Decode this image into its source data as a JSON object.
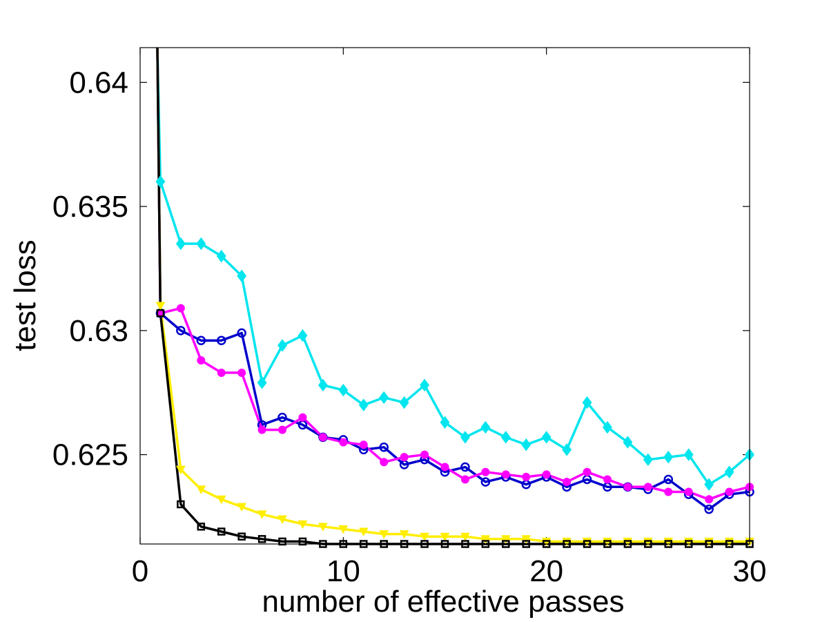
{
  "chart_data": {
    "type": "line",
    "title": "",
    "xlabel": "number of effective passes",
    "ylabel": "test loss",
    "xlim": [
      0,
      30
    ],
    "ylim": [
      0.6214,
      0.6414
    ],
    "xticks": [
      {
        "value": 0,
        "label": "0"
      },
      {
        "value": 10,
        "label": "10"
      },
      {
        "value": 20,
        "label": "20"
      },
      {
        "value": 30,
        "label": "30"
      }
    ],
    "yticks": [
      {
        "value": 0.625,
        "label": "0.625"
      },
      {
        "value": 0.63,
        "label": "0.63"
      },
      {
        "value": 0.635,
        "label": "0.635"
      },
      {
        "value": 0.64,
        "label": "0.64"
      }
    ],
    "grid": false,
    "legend": "none",
    "x": [
      1,
      2,
      3,
      4,
      5,
      6,
      7,
      8,
      9,
      10,
      11,
      12,
      13,
      14,
      15,
      16,
      17,
      18,
      19,
      20,
      21,
      22,
      23,
      24,
      25,
      26,
      27,
      28,
      29,
      30
    ],
    "series": [
      {
        "name": "cyan-diamond",
        "color": "#00e5ee",
        "marker": "diamond",
        "start": {
          "x": 0.85,
          "y": 0.6414
        },
        "values": [
          0.636,
          0.6335,
          0.6335,
          0.633,
          0.6322,
          0.6279,
          0.6294,
          0.6298,
          0.6278,
          0.6276,
          0.627,
          0.6273,
          0.6271,
          0.6278,
          0.6263,
          0.6257,
          0.6261,
          0.6257,
          0.6254,
          0.6257,
          0.6252,
          0.6271,
          0.6261,
          0.6255,
          0.6248,
          0.6249,
          0.625,
          0.6238,
          0.6243,
          0.625
        ]
      },
      {
        "name": "blue-circle",
        "color": "#0000cc",
        "marker": "circle",
        "start": {
          "x": 0.85,
          "y": 0.6414
        },
        "values": [
          0.6307,
          0.63,
          0.6296,
          0.6296,
          0.6299,
          0.6262,
          0.6265,
          0.6262,
          0.6257,
          0.6256,
          0.6252,
          0.6253,
          0.6246,
          0.6248,
          0.6243,
          0.6245,
          0.6239,
          0.6241,
          0.6238,
          0.6241,
          0.6237,
          0.624,
          0.6237,
          0.6237,
          0.6236,
          0.624,
          0.6234,
          0.6228,
          0.6234,
          0.6235
        ]
      },
      {
        "name": "magenta-dot",
        "color": "#ff00ff",
        "marker": "dot",
        "start": {
          "x": 0.85,
          "y": 0.6414
        },
        "values": [
          0.6307,
          0.6309,
          0.6288,
          0.6283,
          0.6283,
          0.626,
          0.626,
          0.6265,
          0.6257,
          0.6255,
          0.6254,
          0.6247,
          0.6249,
          0.625,
          0.6245,
          0.624,
          0.6243,
          0.6242,
          0.6241,
          0.6242,
          0.6239,
          0.6243,
          0.624,
          0.6237,
          0.6237,
          0.6235,
          0.6235,
          0.6232,
          0.6235,
          0.6237
        ]
      },
      {
        "name": "yellow-triangle",
        "color": "#ffee00",
        "marker": "triangle-down",
        "start": {
          "x": 0.85,
          "y": 0.6414
        },
        "values": [
          0.631,
          0.6244,
          0.6236,
          0.6232,
          0.6229,
          0.6226,
          0.6224,
          0.6222,
          0.6221,
          0.622,
          0.6219,
          0.6218,
          0.6218,
          0.6217,
          0.6217,
          0.6217,
          0.6216,
          0.6216,
          0.6216,
          0.6215,
          0.6215,
          0.6215,
          0.6215,
          0.6215,
          0.6215,
          0.6215,
          0.6215,
          0.6215,
          0.6215,
          0.6215
        ]
      },
      {
        "name": "black-square",
        "color": "#000000",
        "marker": "square",
        "start": {
          "x": 0.85,
          "y": 0.6414
        },
        "values": [
          0.6307,
          0.623,
          0.6221,
          0.6219,
          0.6217,
          0.6216,
          0.6215,
          0.6215,
          0.6214,
          0.6214,
          0.6214,
          0.6214,
          0.6214,
          0.6214,
          0.6214,
          0.6214,
          0.6214,
          0.6214,
          0.6214,
          0.6214,
          0.6214,
          0.6214,
          0.6214,
          0.6214,
          0.6214,
          0.6214,
          0.6214,
          0.6214,
          0.6214,
          0.6214
        ]
      }
    ]
  }
}
